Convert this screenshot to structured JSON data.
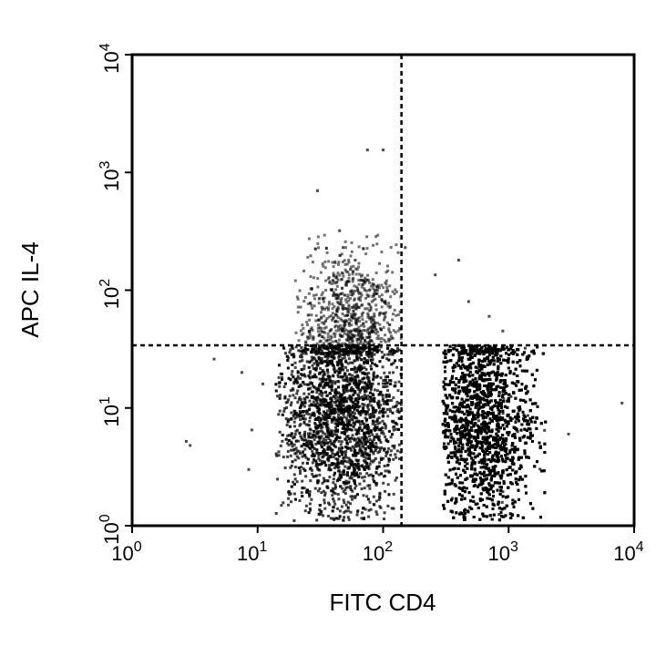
{
  "chart_data": {
    "type": "scatter",
    "title": "",
    "xlabel": "FITC CD4",
    "ylabel": "APC IL-4",
    "xscale": "log",
    "yscale": "log",
    "xlim": [
      1,
      10000
    ],
    "ylim": [
      1,
      10000
    ],
    "grid": false,
    "legend": "none",
    "x_tick_labels": [
      {
        "value": 1,
        "base": "10",
        "exp": "0"
      },
      {
        "value": 10,
        "base": "10",
        "exp": "1"
      },
      {
        "value": 100,
        "base": "10",
        "exp": "2"
      },
      {
        "value": 1000,
        "base": "10",
        "exp": "3"
      },
      {
        "value": 10000,
        "base": "10",
        "exp": "4"
      }
    ],
    "y_tick_labels": [
      {
        "value": 1,
        "base": "10",
        "exp": "0"
      },
      {
        "value": 10,
        "base": "10",
        "exp": "1"
      },
      {
        "value": 100,
        "base": "10",
        "exp": "2"
      },
      {
        "value": 1000,
        "base": "10",
        "exp": "3"
      },
      {
        "value": 10000,
        "base": "10",
        "exp": "4"
      }
    ],
    "quadrant_gates": {
      "x": 140,
      "y": 34
    },
    "series": [
      {
        "marker_color": "#000000",
        "values": [
          {
            "x": 30,
            "y": 700
          },
          {
            "x": 75,
            "y": 1550
          },
          {
            "x": 100,
            "y": 1550
          },
          {
            "x": 45,
            "y": 320
          },
          {
            "x": 55,
            "y": 150
          },
          {
            "x": 60,
            "y": 180
          },
          {
            "x": 40,
            "y": 90
          },
          {
            "x": 70,
            "y": 120
          },
          {
            "x": 85,
            "y": 60
          },
          {
            "x": 35,
            "y": 55
          },
          {
            "x": 50,
            "y": 70
          },
          {
            "x": 65,
            "y": 45
          },
          {
            "x": 25,
            "y": 40
          },
          {
            "x": 90,
            "y": 100
          },
          {
            "x": 48,
            "y": 230
          },
          {
            "x": 150,
            "y": 230
          },
          {
            "x": 400,
            "y": 180
          },
          {
            "x": 260,
            "y": 135
          },
          {
            "x": 480,
            "y": 80
          },
          {
            "x": 700,
            "y": 60
          },
          {
            "x": 900,
            "y": 45
          },
          {
            "x": 2.7,
            "y": 5.2
          },
          {
            "x": 2.9,
            "y": 4.8
          },
          {
            "x": 4.5,
            "y": 26
          },
          {
            "x": 7.5,
            "y": 20
          },
          {
            "x": 8000,
            "y": 11
          },
          {
            "x": 8.5,
            "y": 3
          },
          {
            "x": 9,
            "y": 6.5
          },
          {
            "x": 11,
            "y": 16
          },
          {
            "x": 15,
            "y": 12
          },
          {
            "x": 18,
            "y": 8
          },
          {
            "x": 20,
            "y": 22
          },
          {
            "x": 3000,
            "y": 6
          }
        ]
      }
    ],
    "clusters": [
      {
        "x_range": [
          14,
          140
        ],
        "y_range": [
          1.1,
          34
        ],
        "center_x": 48,
        "center_y": 9,
        "density": "high"
      },
      {
        "x_range": [
          300,
          2000
        ],
        "y_range": [
          1.1,
          34
        ],
        "center_x": 620,
        "center_y": 8,
        "density": "very high"
      },
      {
        "x_range": [
          20,
          140
        ],
        "y_range": [
          34,
          300
        ],
        "center_x": 55,
        "center_y": 70,
        "density": "medium"
      }
    ]
  }
}
